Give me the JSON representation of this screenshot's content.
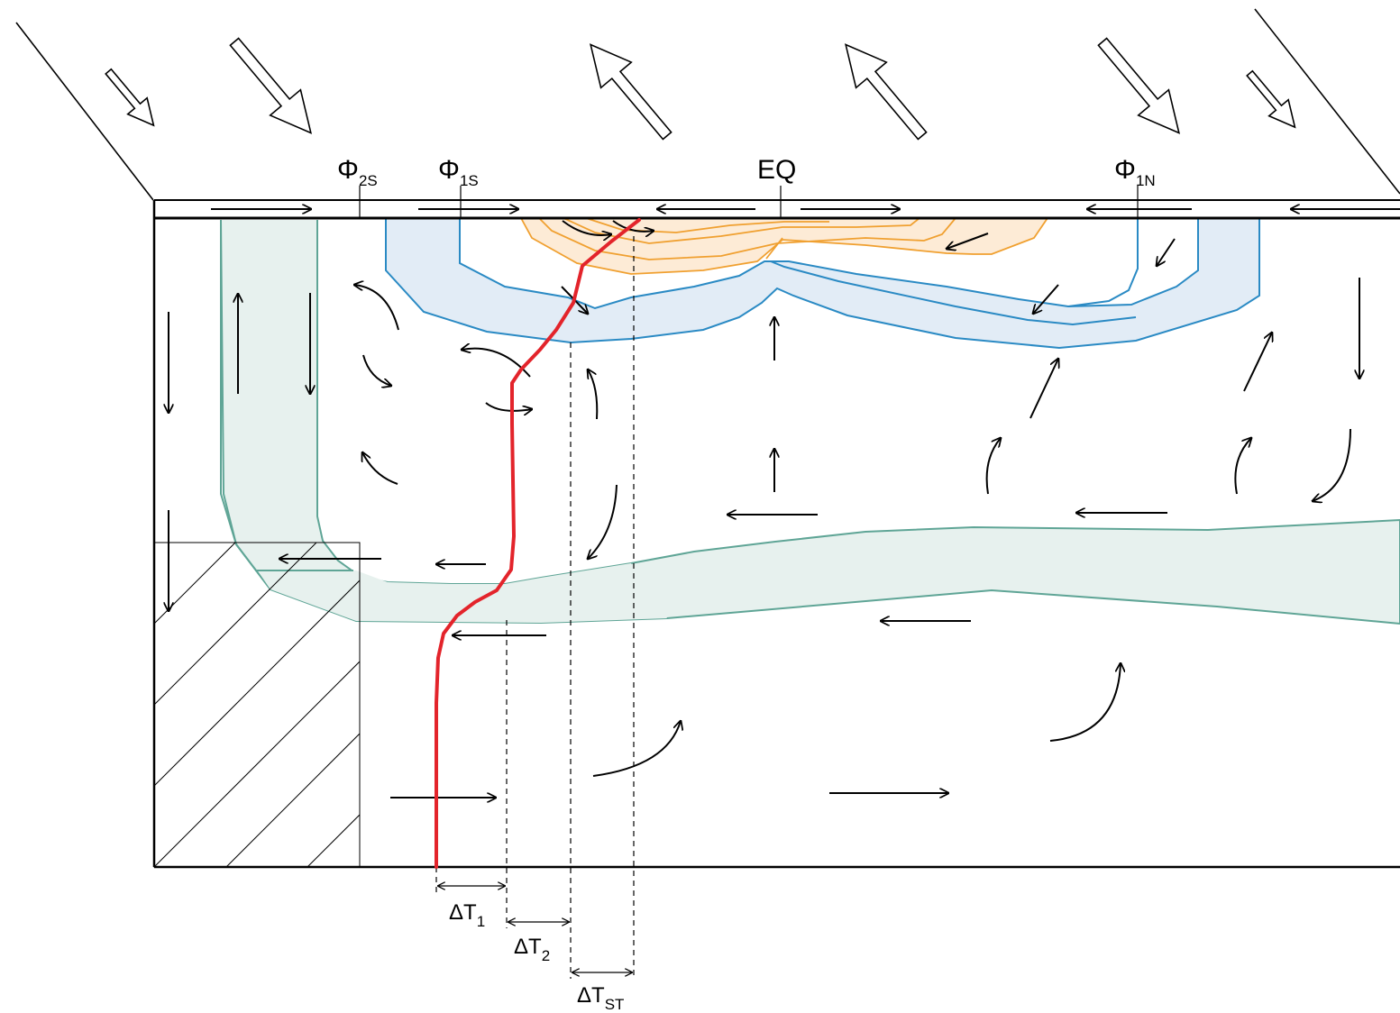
{
  "labels": {
    "phi2s": {
      "main": "Φ",
      "sub": "2S"
    },
    "phi1s": {
      "main": "Φ",
      "sub": "1S"
    },
    "eq": "EQ",
    "phi1n": {
      "main": "Φ",
      "sub": "1N"
    },
    "dt1": {
      "main": "ΔT",
      "sub": "1"
    },
    "dt2": {
      "main": "ΔT",
      "sub": "2"
    },
    "dtst": {
      "main": "ΔT",
      "sub": "ST"
    }
  },
  "colors": {
    "temperature_profile": "#e3242b",
    "warm_layer_stroke": "#f0a030",
    "warm_layer_fill": "#fdebd6",
    "thermocline_stroke": "#2a8ac4",
    "thermocline_fill": "#e2ecf6",
    "deep_water_stroke": "#5fa596",
    "deep_water_fill": "#e7f1ee",
    "lines": "#000000"
  },
  "icons": {
    "wind": "hollow-wind-arrow-icon",
    "flow": "flow-arrow-icon",
    "double": "double-headed-arrow-icon"
  }
}
